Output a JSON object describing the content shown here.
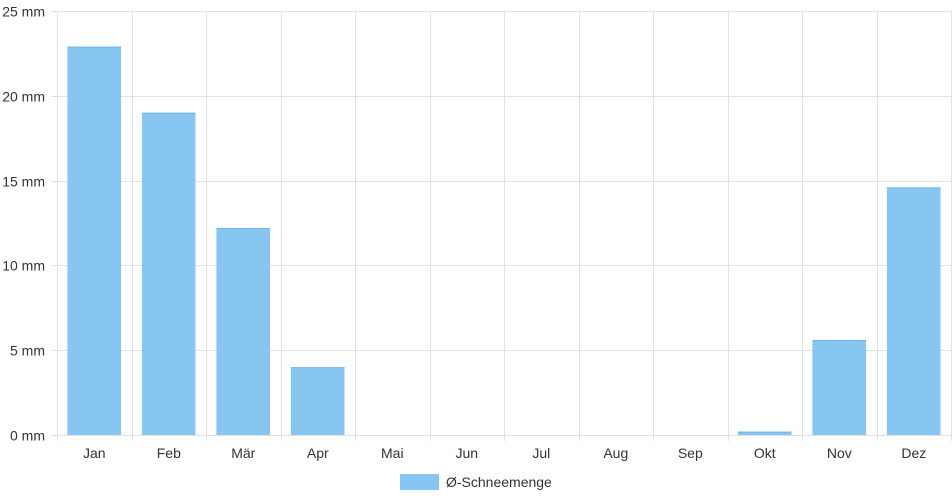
{
  "chart_data": {
    "type": "bar",
    "categories": [
      "Jan",
      "Feb",
      "Mär",
      "Apr",
      "Mai",
      "Jun",
      "Jul",
      "Aug",
      "Sep",
      "Okt",
      "Nov",
      "Dez"
    ],
    "series": [
      {
        "name": "Ø-Schneemenge",
        "values": [
          22.9,
          19.0,
          12.2,
          4.0,
          0,
          0,
          0,
          0,
          0,
          0.2,
          5.6,
          14.6
        ],
        "color": "#88c6f2"
      }
    ],
    "y_unit": "mm",
    "y_ticks": [
      "0 mm",
      "5 mm",
      "10 mm",
      "15 mm",
      "20 mm",
      "25 mm"
    ],
    "ylim": [
      0,
      25
    ],
    "grid": true,
    "legend": {
      "position": "bottom-center"
    }
  }
}
